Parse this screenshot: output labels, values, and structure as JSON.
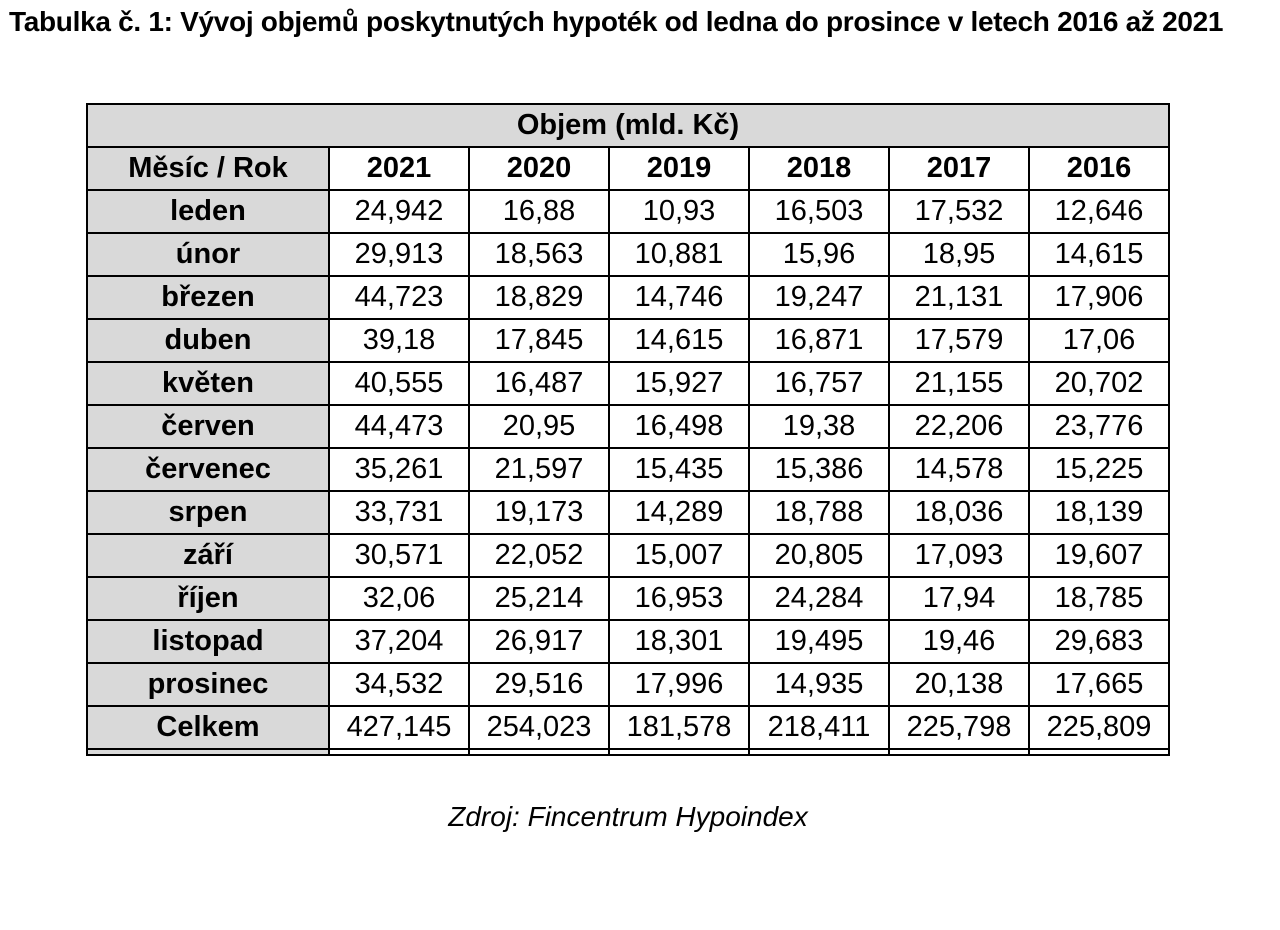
{
  "title": "Tabulka č. 1: Vývoj objemů poskytnutých hypoték od ledna do prosince v letech 2016 až 2021",
  "table": {
    "header": "Objem (mld. Kč)",
    "corner_label": "Měsíc / Rok",
    "years": [
      "2021",
      "2020",
      "2019",
      "2018",
      "2017",
      "2016"
    ],
    "rows": [
      {
        "label": "leden",
        "values": [
          "24,942",
          "16,88",
          "10,93",
          "16,503",
          "17,532",
          "12,646"
        ]
      },
      {
        "label": "únor",
        "values": [
          "29,913",
          "18,563",
          "10,881",
          "15,96",
          "18,95",
          "14,615"
        ]
      },
      {
        "label": "březen",
        "values": [
          "44,723",
          "18,829",
          "14,746",
          "19,247",
          "21,131",
          "17,906"
        ]
      },
      {
        "label": "duben",
        "values": [
          "39,18",
          "17,845",
          "14,615",
          "16,871",
          "17,579",
          "17,06"
        ]
      },
      {
        "label": "květen",
        "values": [
          "40,555",
          "16,487",
          "15,927",
          "16,757",
          "21,155",
          "20,702"
        ]
      },
      {
        "label": "červen",
        "values": [
          "44,473",
          "20,95",
          "16,498",
          "19,38",
          "22,206",
          "23,776"
        ]
      },
      {
        "label": "červenec",
        "values": [
          "35,261",
          "21,597",
          "15,435",
          "15,386",
          "14,578",
          "15,225"
        ]
      },
      {
        "label": "srpen",
        "values": [
          "33,731",
          "19,173",
          "14,289",
          "18,788",
          "18,036",
          "18,139"
        ]
      },
      {
        "label": "září",
        "values": [
          "30,571",
          "22,052",
          "15,007",
          "20,805",
          "17,093",
          "19,607"
        ]
      },
      {
        "label": "říjen",
        "values": [
          "32,06",
          "25,214",
          "16,953",
          "24,284",
          "17,94",
          "18,785"
        ]
      },
      {
        "label": "listopad",
        "values": [
          "37,204",
          "26,917",
          "18,301",
          "19,495",
          "19,46",
          "29,683"
        ]
      },
      {
        "label": "prosinec",
        "values": [
          "34,532",
          "29,516",
          "17,996",
          "14,935",
          "20,138",
          "17,665"
        ]
      }
    ],
    "total_row": {
      "label": "Celkem",
      "values": [
        "427,145",
        "254,023",
        "181,578",
        "218,411",
        "225,798",
        "225,809"
      ]
    }
  },
  "source": "Zdroj: Fincentrum Hypoindex",
  "colors": {
    "header_fill": "#d9d9d9",
    "border": "#000000",
    "text": "#000000",
    "background": "#ffffff"
  }
}
